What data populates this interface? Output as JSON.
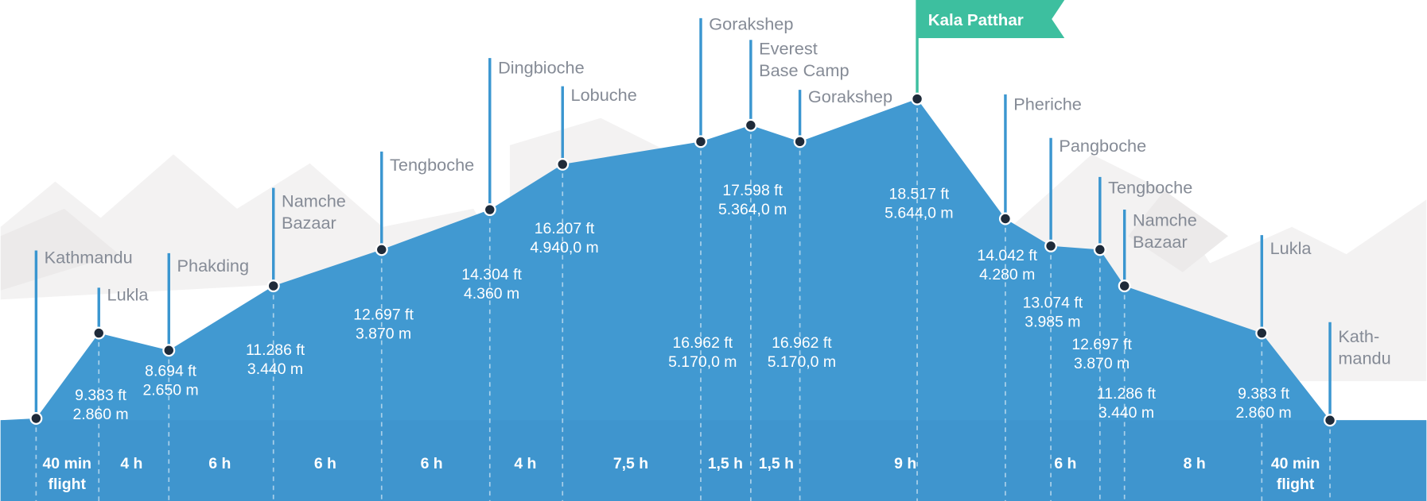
{
  "stops": [
    {
      "name": [
        "Kathmandu"
      ]
    },
    {
      "name": [
        "Lukla"
      ],
      "elevation": [
        "9.383 ft",
        "2.860 m"
      ]
    },
    {
      "name": [
        "Phakding"
      ],
      "elevation": [
        "8.694 ft",
        "2.650 m"
      ]
    },
    {
      "name": [
        "Namche",
        "Bazaar"
      ],
      "elevation": [
        "11.286 ft",
        "3.440 m"
      ]
    },
    {
      "name": [
        "Tengboche"
      ],
      "elevation": [
        "12.697 ft",
        "3.870 m"
      ]
    },
    {
      "name": [
        "Dingbioche"
      ],
      "elevation": [
        "14.304 ft",
        "4.360 m"
      ]
    },
    {
      "name": [
        "Lobuche"
      ],
      "elevation": [
        "16.207 ft",
        "4.940,0 m"
      ]
    },
    {
      "name": [
        "Gorakshep"
      ],
      "elevation": [
        "16.962 ft",
        "5.170,0 m"
      ]
    },
    {
      "name": [
        "Everest",
        "Base Camp"
      ],
      "elevation": [
        "17.598 ft",
        "5.364,0 m"
      ]
    },
    {
      "name": [
        "Gorakshep"
      ],
      "elevation": [
        "16.962 ft",
        "5.170,0 m"
      ]
    },
    {
      "name": [
        "Kala Patthar"
      ],
      "elevation": [
        "18.517 ft",
        "5.644,0 m"
      ]
    },
    {
      "name": [
        "Pheriche"
      ],
      "elevation": [
        "14.042 ft",
        "4.280 m"
      ]
    },
    {
      "name": [
        "Pangboche"
      ],
      "elevation": [
        "13.074 ft",
        "3.985 m"
      ]
    },
    {
      "name": [
        "Tengboche"
      ],
      "elevation": [
        "12.697 ft",
        "3.870 m"
      ]
    },
    {
      "name": [
        "Namche",
        "Bazaar"
      ],
      "elevation": [
        "11.286 ft",
        "3.440 m"
      ]
    },
    {
      "name": [
        "Lukla"
      ],
      "elevation": [
        "9.383 ft",
        "2.860 m"
      ]
    },
    {
      "name": [
        "Kath-",
        "mandu"
      ]
    }
  ],
  "durations": [
    [
      "40 min",
      "flight"
    ],
    [
      "4 h"
    ],
    [
      "6 h"
    ],
    [
      "6 h"
    ],
    [
      "6 h"
    ],
    [
      "4 h"
    ],
    [
      "7,5 h"
    ],
    [
      "1,5 h"
    ],
    [
      "1,5 h"
    ],
    [
      "9 h"
    ],
    [
      "6 h"
    ],
    [
      "8 h"
    ],
    [
      "40 min",
      "flight"
    ]
  ]
}
